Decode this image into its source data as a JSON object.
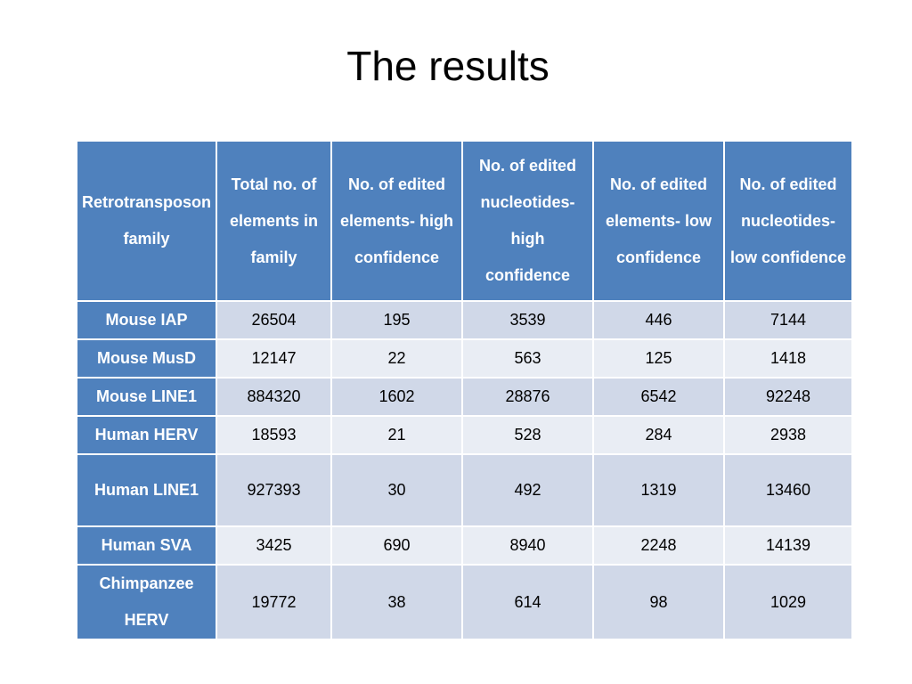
{
  "title": "The results",
  "table": {
    "headers": [
      "Retrotransposon family",
      "Total no. of elements in family",
      "No. of edited elements- high confidence",
      "No. of edited nucleotides- high confidence",
      "No. of edited elements- low confidence",
      "No. of edited nucleotides- low confidence"
    ],
    "rows": [
      {
        "family": "Mouse IAP",
        "values": [
          "26504",
          "195",
          "3539",
          "446",
          "7144"
        ]
      },
      {
        "family": "Mouse MusD",
        "values": [
          "12147",
          "22",
          "563",
          "125",
          "1418"
        ]
      },
      {
        "family": "Mouse LINE1",
        "values": [
          "884320",
          "1602",
          "28876",
          "6542",
          "92248"
        ]
      },
      {
        "family": "Human HERV",
        "values": [
          "18593",
          "21",
          "528",
          "284",
          "2938"
        ]
      },
      {
        "family": "Human LINE1",
        "values": [
          "927393",
          "30",
          "492",
          "1319",
          "13460"
        ]
      },
      {
        "family": "Human SVA",
        "values": [
          "3425",
          "690",
          "8940",
          "2248",
          "14139"
        ]
      },
      {
        "family": "Chimpanzee HERV",
        "values": [
          "19772",
          "38",
          "614",
          "98",
          "1029"
        ]
      }
    ]
  },
  "colors": {
    "header_bg": "#4f81bd",
    "row_odd_bg": "#d0d8e8",
    "row_even_bg": "#e9edf4"
  }
}
